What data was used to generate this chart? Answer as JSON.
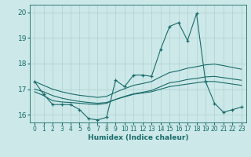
{
  "title": "",
  "xlabel": "Humidex (Indice chaleur)",
  "ylabel": "",
  "background_color": "#cce8e8",
  "grid_color": "#b0d0d0",
  "line_color": "#1a6b6b",
  "xlim": [
    -0.5,
    23.5
  ],
  "ylim": [
    15.7,
    20.3
  ],
  "yticks": [
    16,
    17,
    18,
    19,
    20
  ],
  "xticks": [
    0,
    1,
    2,
    3,
    4,
    5,
    6,
    7,
    8,
    9,
    10,
    11,
    12,
    13,
    14,
    15,
    16,
    17,
    18,
    19,
    20,
    21,
    22,
    23
  ],
  "line1_x": [
    0,
    1,
    2,
    3,
    4,
    5,
    6,
    7,
    8,
    9,
    10,
    11,
    12,
    13,
    14,
    15,
    16,
    17,
    18,
    19,
    20,
    21,
    22,
    23
  ],
  "line1_y": [
    17.3,
    16.8,
    16.4,
    16.4,
    16.4,
    16.2,
    15.85,
    15.8,
    15.9,
    17.35,
    17.1,
    17.55,
    17.55,
    17.5,
    18.55,
    19.45,
    19.6,
    18.9,
    19.95,
    17.3,
    16.45,
    16.1,
    16.2,
    16.3
  ],
  "line2_x": [
    0,
    1,
    2,
    3,
    4,
    5,
    6,
    7,
    8,
    9,
    10,
    11,
    12,
    13,
    14,
    15,
    16,
    17,
    18,
    19,
    20,
    21,
    22,
    23
  ],
  "line2_y": [
    16.9,
    16.75,
    16.55,
    16.5,
    16.48,
    16.45,
    16.42,
    16.4,
    16.45,
    16.6,
    16.7,
    16.8,
    16.85,
    16.9,
    17.0,
    17.1,
    17.15,
    17.2,
    17.25,
    17.3,
    17.3,
    17.25,
    17.2,
    17.15
  ],
  "line3_x": [
    0,
    1,
    2,
    3,
    4,
    5,
    6,
    7,
    8,
    9,
    10,
    11,
    12,
    13,
    14,
    15,
    16,
    17,
    18,
    19,
    20,
    21,
    22,
    23
  ],
  "line3_y": [
    17.0,
    16.9,
    16.75,
    16.65,
    16.58,
    16.52,
    16.48,
    16.45,
    16.48,
    16.6,
    16.72,
    16.82,
    16.88,
    16.95,
    17.1,
    17.25,
    17.3,
    17.38,
    17.42,
    17.48,
    17.5,
    17.45,
    17.4,
    17.35
  ],
  "line4_x": [
    0,
    1,
    2,
    3,
    4,
    5,
    6,
    7,
    8,
    9,
    10,
    11,
    12,
    13,
    14,
    15,
    16,
    17,
    18,
    19,
    20,
    21,
    22,
    23
  ],
  "line4_y": [
    17.3,
    17.15,
    17.0,
    16.9,
    16.82,
    16.76,
    16.72,
    16.68,
    16.72,
    16.88,
    17.02,
    17.15,
    17.22,
    17.3,
    17.48,
    17.65,
    17.72,
    17.82,
    17.88,
    17.95,
    17.98,
    17.92,
    17.85,
    17.78
  ]
}
